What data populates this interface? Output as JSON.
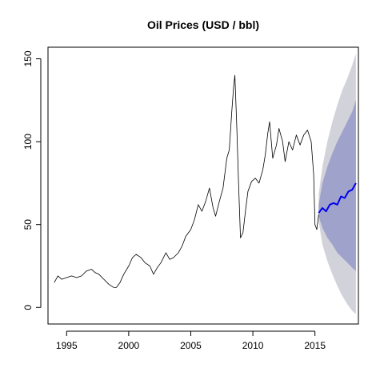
{
  "chart_data": {
    "type": "line",
    "title": "Oil Prices (USD / bbl)",
    "xlabel": "",
    "ylabel": "",
    "xlim": [
      1993.5,
      2018.5
    ],
    "ylim": [
      -10,
      157
    ],
    "x_ticks": [
      1995,
      2000,
      2005,
      2010,
      2015
    ],
    "x_tick_labels": [
      "1995",
      "2000",
      "2005",
      "2010",
      "2015"
    ],
    "y_ticks": [
      0,
      50,
      100,
      150
    ],
    "y_tick_labels": [
      "0",
      "50",
      "100",
      "150"
    ],
    "grid": false,
    "legend": "none",
    "colors": {
      "history": "#000000",
      "forecast": "#0000ee",
      "band80": "#9fa3cb",
      "band95": "#d2d2da"
    },
    "series": [
      {
        "role": "history",
        "points": [
          [
            1994.0,
            15
          ],
          [
            1994.3,
            19
          ],
          [
            1994.6,
            17
          ],
          [
            1995.0,
            18
          ],
          [
            1995.4,
            19
          ],
          [
            1995.8,
            18
          ],
          [
            1996.2,
            19
          ],
          [
            1996.6,
            22
          ],
          [
            1997.0,
            23
          ],
          [
            1997.3,
            21
          ],
          [
            1997.6,
            20
          ],
          [
            1998.0,
            17
          ],
          [
            1998.4,
            14
          ],
          [
            1998.8,
            12
          ],
          [
            1999.0,
            12
          ],
          [
            1999.3,
            15
          ],
          [
            1999.6,
            20
          ],
          [
            2000.0,
            25
          ],
          [
            2000.3,
            30
          ],
          [
            2000.6,
            32
          ],
          [
            2001.0,
            30
          ],
          [
            2001.3,
            27
          ],
          [
            2001.7,
            25
          ],
          [
            2002.0,
            20
          ],
          [
            2002.3,
            24
          ],
          [
            2002.6,
            27
          ],
          [
            2003.0,
            33
          ],
          [
            2003.3,
            29
          ],
          [
            2003.6,
            30
          ],
          [
            2004.0,
            33
          ],
          [
            2004.3,
            37
          ],
          [
            2004.6,
            43
          ],
          [
            2005.0,
            47
          ],
          [
            2005.3,
            53
          ],
          [
            2005.6,
            62
          ],
          [
            2005.9,
            58
          ],
          [
            2006.2,
            64
          ],
          [
            2006.5,
            72
          ],
          [
            2006.8,
            60
          ],
          [
            2007.0,
            55
          ],
          [
            2007.3,
            64
          ],
          [
            2007.6,
            72
          ],
          [
            2007.9,
            90
          ],
          [
            2008.1,
            95
          ],
          [
            2008.3,
            118
          ],
          [
            2008.45,
            133
          ],
          [
            2008.55,
            140
          ],
          [
            2008.7,
            110
          ],
          [
            2008.85,
            75
          ],
          [
            2009.0,
            42
          ],
          [
            2009.2,
            45
          ],
          [
            2009.4,
            58
          ],
          [
            2009.6,
            70
          ],
          [
            2009.9,
            76
          ],
          [
            2010.2,
            78
          ],
          [
            2010.5,
            75
          ],
          [
            2010.8,
            83
          ],
          [
            2011.0,
            92
          ],
          [
            2011.2,
            105
          ],
          [
            2011.35,
            112
          ],
          [
            2011.6,
            90
          ],
          [
            2011.9,
            98
          ],
          [
            2012.1,
            108
          ],
          [
            2012.4,
            100
          ],
          [
            2012.6,
            88
          ],
          [
            2012.9,
            100
          ],
          [
            2013.2,
            95
          ],
          [
            2013.5,
            104
          ],
          [
            2013.8,
            98
          ],
          [
            2014.1,
            104
          ],
          [
            2014.4,
            107
          ],
          [
            2014.7,
            100
          ],
          [
            2014.9,
            80
          ],
          [
            2015.0,
            50
          ],
          [
            2015.15,
            47
          ],
          [
            2015.3,
            56
          ]
        ]
      },
      {
        "role": "forecast",
        "points": [
          [
            2015.3,
            57
          ],
          [
            2015.6,
            60
          ],
          [
            2015.9,
            58
          ],
          [
            2016.2,
            62
          ],
          [
            2016.5,
            63
          ],
          [
            2016.8,
            62
          ],
          [
            2017.1,
            67
          ],
          [
            2017.4,
            66
          ],
          [
            2017.7,
            70
          ],
          [
            2018.0,
            71
          ],
          [
            2018.3,
            75
          ]
        ]
      }
    ],
    "forecast_band_80": {
      "x": [
        2015.3,
        2015.6,
        2016.0,
        2016.4,
        2016.8,
        2017.2,
        2017.6,
        2018.0,
        2018.3
      ],
      "lower": [
        55,
        48,
        42,
        38,
        33,
        30,
        27,
        24,
        22
      ],
      "upper": [
        62,
        75,
        85,
        93,
        100,
        106,
        112,
        118,
        125
      ]
    },
    "forecast_band_95": {
      "x": [
        2015.3,
        2015.6,
        2016.0,
        2016.4,
        2016.8,
        2017.2,
        2017.6,
        2018.0,
        2018.3
      ],
      "lower": [
        52,
        38,
        28,
        20,
        13,
        7,
        2,
        -2,
        -4
      ],
      "upper": [
        68,
        85,
        100,
        112,
        122,
        131,
        138,
        146,
        153
      ]
    }
  }
}
